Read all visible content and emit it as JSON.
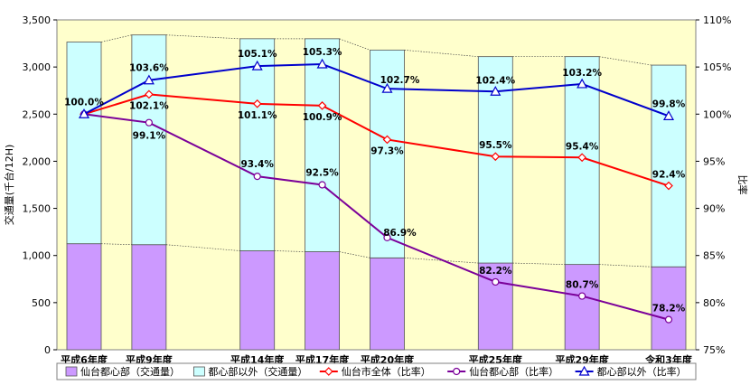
{
  "chart_data": {
    "type": "bar+line",
    "title": "",
    "ylabel_left": "交通量(千台/12H)",
    "ylabel_right": "比率",
    "ylim_left": [
      0,
      3500
    ],
    "yticks_left": [
      "0",
      "500",
      "1,000",
      "1,500",
      "2,000",
      "2,500",
      "3,000",
      "3,500"
    ],
    "ylim_right": [
      75,
      110
    ],
    "yticks_right": [
      "75%",
      "80%",
      "85%",
      "90%",
      "95%",
      "100%",
      "105%",
      "110%"
    ],
    "categories": [
      "平成6年度",
      "平成9年度",
      "平成14年度",
      "平成17年度",
      "平成20年度",
      "平成25年度",
      "平成29年度",
      "令和3年度"
    ],
    "category_years": [
      1994,
      1997,
      2002,
      2005,
      2008,
      2013,
      2017,
      2021
    ],
    "stacked_bars": [
      {
        "name": "仙台都心部（交通量）",
        "color": "#cc99ff",
        "values": [
          1125,
          1115,
          1050,
          1040,
          975,
          920,
          905,
          880
        ]
      },
      {
        "name": "都心部以外（交通量）",
        "color": "#ccffff",
        "values": [
          2140,
          2225,
          2250,
          2260,
          2205,
          2190,
          2205,
          2140
        ]
      }
    ],
    "line_series": [
      {
        "name": "仙台市全体（比率）",
        "color": "#ff0000",
        "marker": "diamond",
        "values": [
          100.0,
          102.1,
          101.1,
          100.9,
          97.3,
          95.5,
          95.4,
          92.4
        ],
        "labels": [
          "",
          "102.1%",
          "101.1%",
          "100.9%",
          "97.3%",
          "95.5%",
          "95.4%",
          "92.4%"
        ]
      },
      {
        "name": "仙台都心部（比率）",
        "color": "#7b0099",
        "marker": "circle",
        "values": [
          100.0,
          99.1,
          93.4,
          92.5,
          86.9,
          82.2,
          80.7,
          78.2
        ],
        "labels": [
          "",
          "99.1%",
          "93.4%",
          "92.5%",
          "86.9%",
          "82.2%",
          "80.7%",
          "78.2%"
        ]
      },
      {
        "name": "都心部以外（比率）",
        "color": "#0000cc",
        "marker": "triangle",
        "values": [
          100.0,
          103.6,
          105.1,
          105.3,
          102.7,
          102.4,
          103.2,
          99.8
        ],
        "labels": [
          "100.0%",
          "103.6%",
          "105.1%",
          "105.3%",
          "102.7%",
          "102.4%",
          "103.2%",
          "99.8%"
        ]
      }
    ],
    "plot_background": "#ffffcc",
    "grid": false,
    "legend_position": "bottom"
  }
}
